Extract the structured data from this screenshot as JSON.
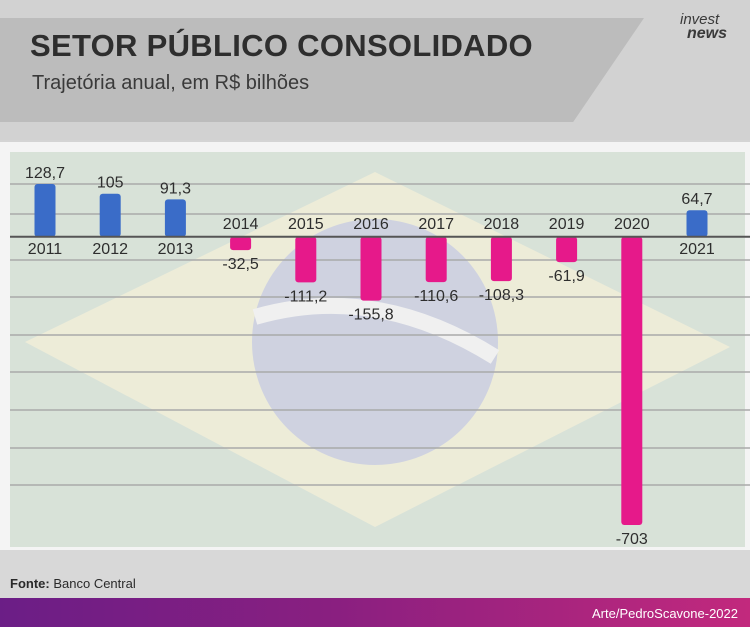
{
  "header": {
    "title": "SETOR PÚBLICO CONSOLIDADO",
    "subtitle": "Trajetória anual, em R$ bilhões",
    "logo_top": "invest",
    "logo_bottom": "news"
  },
  "footer": {
    "source_label": "Fonte:",
    "source_value": "Banco Central",
    "credit": "Arte/PedroScavone-2022"
  },
  "colors": {
    "positive": "#3a6cc8",
    "negative": "#e6198a",
    "gridline": "#a9a9a9"
  },
  "chart_data": {
    "type": "bar",
    "categories": [
      "2011",
      "2012",
      "2013",
      "2014",
      "2015",
      "2016",
      "2017",
      "2018",
      "2019",
      "2020",
      "2021"
    ],
    "values": [
      128.7,
      105,
      91.3,
      -32.5,
      -111.2,
      -155.8,
      -110.6,
      -108.3,
      -61.9,
      -703,
      64.7
    ],
    "value_labels": [
      "128,7",
      "105",
      "91,3",
      "-32,5",
      "-111,2",
      "-155,8",
      "-110,6",
      "-108,3",
      "-61,9",
      "-703",
      "64,7"
    ],
    "title": "SETOR PÚBLICO CONSOLIDADO",
    "subtitle": "Trajetória anual, em R$ bilhões",
    "xlabel": "",
    "ylabel": "",
    "ylim": [
      -703,
      128.7
    ],
    "grid": true,
    "legend": "none"
  }
}
